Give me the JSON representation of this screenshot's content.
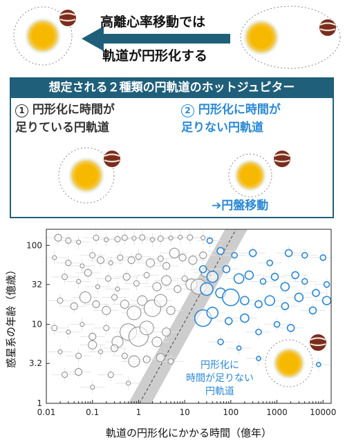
{
  "header": {
    "line1": "高離心率移動では",
    "line2": "軌道が円形化する"
  },
  "banner": {
    "title": "想定される２種類の円軌道のホットジュピター"
  },
  "case1": {
    "number": "1",
    "line1": "円形化に時間が",
    "line2": "足りている円軌道"
  },
  "case2": {
    "number": "2",
    "line1": "円形化に時間が",
    "line2": "足りない円軌道",
    "note": "➔円盤移動"
  },
  "colors": {
    "star": "#f7b800",
    "star_glow": "#cfe8f7",
    "planet": "#7a2d1f",
    "banner": "#1f5f7a",
    "accent_blue": "#2a88d4",
    "gray_points": "#8a8a8a"
  },
  "chart_data": {
    "type": "scatter",
    "title": "",
    "xlabel": "軌道の円形化にかかる時間（億年）",
    "ylabel": "惑星系の年齢（億歳）",
    "x_scale": "log",
    "y_scale": "log",
    "xlim": [
      0.01,
      15000
    ],
    "ylim": [
      1,
      160
    ],
    "x_ticks": [
      "0.01",
      "0.1",
      "1",
      "10",
      "100",
      "1000",
      "10000"
    ],
    "y_ticks": [
      "1",
      "3.2",
      "10",
      "32",
      "100"
    ],
    "annotation": [
      "円形化に",
      "時間が足りない",
      "円軌道"
    ],
    "band": {
      "description": "x = y boundary with gray uncertainty band",
      "x": [
        1,
        150
      ],
      "y": [
        1,
        150
      ]
    },
    "series": [
      {
        "color": "gray",
        "points": [
          [
            0.018,
            125
          ],
          [
            0.03,
            115
          ],
          [
            0.05,
            110
          ],
          [
            0.12,
            125
          ],
          [
            0.2,
            118
          ],
          [
            0.35,
            120
          ],
          [
            0.5,
            125
          ],
          [
            0.8,
            123
          ],
          [
            1.2,
            126
          ],
          [
            2,
            118
          ],
          [
            3,
            122
          ],
          [
            5,
            124
          ],
          [
            8,
            127
          ],
          [
            13,
            126
          ],
          [
            25,
            125
          ],
          [
            0.015,
            70
          ],
          [
            0.03,
            60
          ],
          [
            0.06,
            55
          ],
          [
            0.1,
            75
          ],
          [
            0.15,
            65
          ],
          [
            0.25,
            60
          ],
          [
            0.4,
            70
          ],
          [
            0.7,
            65
          ],
          [
            1,
            72
          ],
          [
            1.8,
            60
          ],
          [
            3,
            68
          ],
          [
            4,
            55
          ],
          [
            6,
            80
          ],
          [
            9,
            70
          ],
          [
            15,
            65
          ],
          [
            25,
            75
          ],
          [
            0.025,
            40
          ],
          [
            0.05,
            35
          ],
          [
            0.08,
            45
          ],
          [
            0.13,
            30
          ],
          [
            0.22,
            38
          ],
          [
            0.35,
            28
          ],
          [
            0.55,
            40
          ],
          [
            0.9,
            33
          ],
          [
            1.5,
            42
          ],
          [
            2.5,
            30
          ],
          [
            4,
            36
          ],
          [
            7,
            28
          ],
          [
            10,
            38
          ],
          [
            14,
            32
          ],
          [
            20,
            30
          ],
          [
            28,
            45
          ],
          [
            0.02,
            20
          ],
          [
            0.04,
            17
          ],
          [
            0.07,
            22
          ],
          [
            0.12,
            18
          ],
          [
            0.2,
            15
          ],
          [
            0.3,
            22
          ],
          [
            0.5,
            18
          ],
          [
            0.8,
            14
          ],
          [
            1.2,
            20
          ],
          [
            2,
            16
          ],
          [
            3,
            20
          ],
          [
            5,
            15
          ],
          [
            0.015,
            9
          ],
          [
            0.03,
            8
          ],
          [
            0.06,
            10
          ],
          [
            0.1,
            7
          ],
          [
            0.2,
            9
          ],
          [
            0.35,
            6
          ],
          [
            0.6,
            8
          ],
          [
            1,
            7
          ],
          [
            1.5,
            9
          ],
          [
            2.5,
            6
          ],
          [
            4,
            8
          ],
          [
            0.02,
            4.5
          ],
          [
            0.05,
            4
          ],
          [
            0.1,
            5.5
          ],
          [
            0.15,
            4.5
          ],
          [
            0.3,
            5
          ],
          [
            0.5,
            4
          ],
          [
            0.8,
            3.4
          ],
          [
            1.5,
            3.6
          ],
          [
            3,
            3.8
          ],
          [
            5,
            3.4
          ],
          [
            0.025,
            2.3
          ],
          [
            0.05,
            2.5
          ],
          [
            0.1,
            1.6
          ],
          [
            0.25,
            2.3
          ],
          [
            0.6,
            1.8
          ]
        ],
        "sizes": [
          5,
          4,
          3,
          4,
          3,
          4,
          4,
          3,
          4,
          3,
          4,
          3,
          3,
          4,
          3,
          3,
          4,
          3,
          4,
          5,
          3,
          4,
          5,
          4,
          6,
          4,
          5,
          7,
          5,
          6,
          5,
          4,
          3,
          5,
          3,
          4,
          3,
          5,
          4,
          4,
          6,
          7,
          5,
          4,
          8,
          11,
          6,
          4,
          5,
          8,
          5,
          6,
          4,
          6,
          10,
          7,
          12,
          9,
          6,
          4,
          3,
          3,
          5,
          4,
          8,
          12,
          14,
          10,
          7,
          6,
          3,
          4,
          6,
          3,
          5,
          4,
          8,
          5,
          6,
          4,
          4,
          5,
          3,
          4,
          3
        ]
      },
      {
        "color": "blue",
        "points": [
          [
            35,
            115
          ],
          [
            60,
            85
          ],
          [
            120,
            75
          ],
          [
            300,
            80
          ],
          [
            700,
            60
          ],
          [
            1800,
            80
          ],
          [
            4000,
            75
          ],
          [
            10000,
            70
          ],
          [
            25,
            50
          ],
          [
            40,
            40
          ],
          [
            80,
            50
          ],
          [
            150,
            38
          ],
          [
            250,
            42
          ],
          [
            500,
            35
          ],
          [
            900,
            40
          ],
          [
            1500,
            30
          ],
          [
            2500,
            42
          ],
          [
            4000,
            35
          ],
          [
            7000,
            25
          ],
          [
            12000,
            32
          ],
          [
            30,
            28
          ],
          [
            60,
            25
          ],
          [
            100,
            22
          ],
          [
            200,
            20
          ],
          [
            400,
            18
          ],
          [
            700,
            20
          ],
          [
            1500,
            17
          ],
          [
            3000,
            22
          ],
          [
            6000,
            15
          ],
          [
            12000,
            20
          ],
          [
            25,
            12
          ],
          [
            40,
            14
          ],
          [
            90,
            11
          ],
          [
            200,
            12
          ],
          [
            400,
            8
          ],
          [
            1000,
            10
          ],
          [
            2000,
            9
          ],
          [
            60,
            6
          ],
          [
            150,
            5
          ],
          [
            400,
            3.7
          ],
          [
            2500,
            3.5
          ],
          [
            8000,
            3.1
          ]
        ],
        "sizes": [
          4,
          5,
          4,
          5,
          4,
          5,
          4,
          4,
          5,
          8,
          5,
          7,
          6,
          4,
          5,
          6,
          5,
          4,
          5,
          4,
          9,
          7,
          12,
          6,
          5,
          7,
          5,
          6,
          5,
          6,
          12,
          8,
          5,
          6,
          4,
          4,
          5,
          4,
          3,
          3,
          4,
          3
        ]
      }
    ]
  }
}
